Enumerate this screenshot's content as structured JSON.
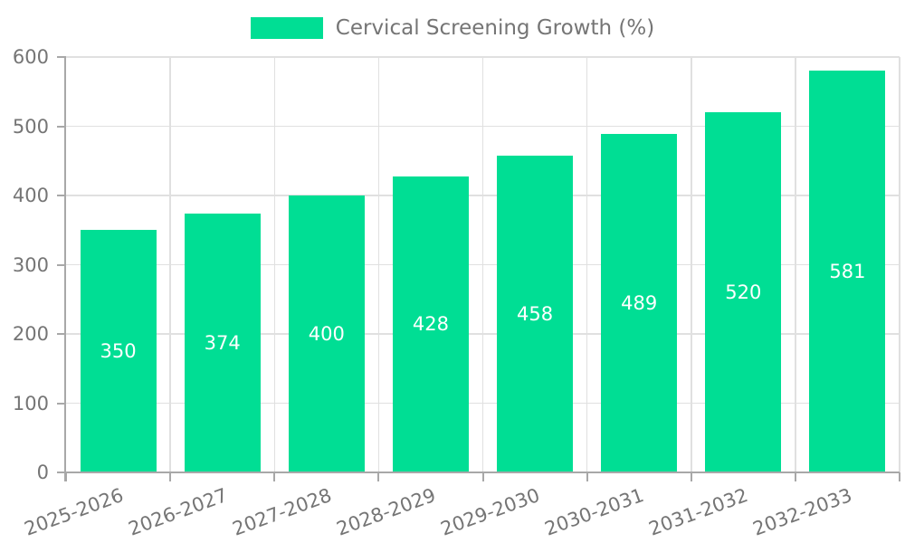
{
  "chart_data": {
    "type": "bar",
    "title": "Cervical Screening Growth (%)",
    "xlabel": "",
    "ylabel": "",
    "categories": [
      "2025-2026",
      "2026-2027",
      "2027-2028",
      "2028-2029",
      "2029-2030",
      "2030-2031",
      "2031-2032",
      "2032-2033"
    ],
    "values": [
      350,
      374,
      400,
      428,
      458,
      489,
      520,
      581
    ],
    "ylim": [
      0,
      600
    ],
    "yticks": [
      0,
      100,
      200,
      300,
      400,
      500,
      600
    ],
    "grid": "horizontal lines at every 100 plus vertical lines at category boundaries",
    "legend_position": "top-center",
    "bar_labels_inside": true,
    "x_label_rotation_deg": -20,
    "colors": {
      "bar": "#00DE94",
      "bar_label": "#FFFFFF",
      "axis": "#A8A8A8",
      "grid": "#E0E0E0",
      "tick_text": "#757575",
      "legend_text": "#757575",
      "background": "#FFFFFF"
    }
  }
}
